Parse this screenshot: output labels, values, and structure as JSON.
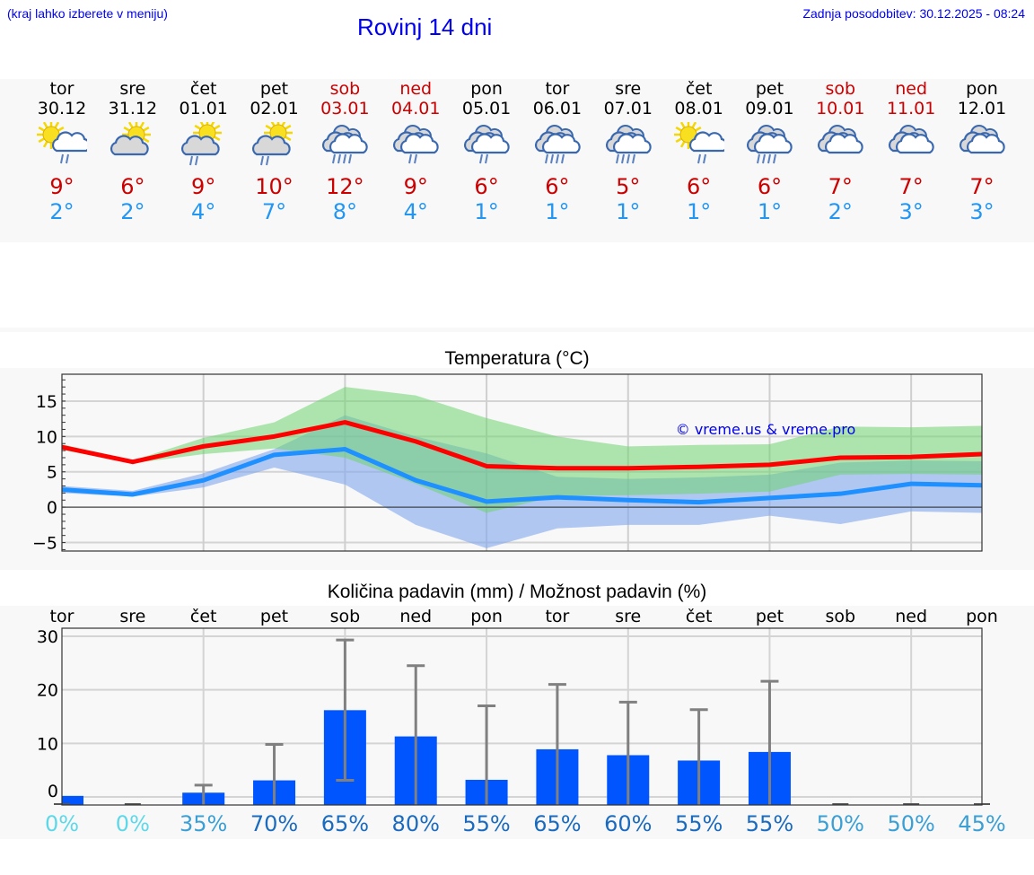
{
  "header": {
    "menu_hint": "(kraj lahko izberete v meniju)",
    "title": "Rovinj 14 dni",
    "last_update": "Zadnja posodobitev: 30.12.2025 - 08:24"
  },
  "colors": {
    "link_blue": "#0000ee",
    "weekend_red": "#cc0000",
    "max_temp": "#cc0000",
    "min_temp": "#2196f3",
    "max_line": "#ff0000",
    "min_line": "#1e90ff",
    "max_band": "#a8e6a8",
    "min_band": "#a9c4f0",
    "bar": "#0055ff",
    "error_bar": "#808080"
  },
  "days": [
    {
      "name": "tor",
      "date": "30.12",
      "weekend": false,
      "icon": "partly-sunny-light-rain-icon",
      "max": "9°",
      "min": "2°"
    },
    {
      "name": "sre",
      "date": "31.12",
      "weekend": false,
      "icon": "partly-cloudy-icon",
      "max": "6°",
      "min": "2°"
    },
    {
      "name": "čet",
      "date": "01.01",
      "weekend": false,
      "icon": "partly-cloudy-light-rain-icon",
      "max": "9°",
      "min": "4°"
    },
    {
      "name": "pet",
      "date": "02.01",
      "weekend": false,
      "icon": "partly-cloudy-light-rain-icon",
      "max": "10°",
      "min": "7°"
    },
    {
      "name": "sob",
      "date": "03.01",
      "weekend": true,
      "icon": "cloudy-heavy-rain-icon",
      "max": "12°",
      "min": "8°"
    },
    {
      "name": "ned",
      "date": "04.01",
      "weekend": true,
      "icon": "cloudy-light-rain-icon",
      "max": "9°",
      "min": "4°"
    },
    {
      "name": "pon",
      "date": "05.01",
      "weekend": false,
      "icon": "cloudy-light-rain-icon",
      "max": "6°",
      "min": "1°"
    },
    {
      "name": "tor",
      "date": "06.01",
      "weekend": false,
      "icon": "cloudy-heavy-rain-icon",
      "max": "6°",
      "min": "1°"
    },
    {
      "name": "sre",
      "date": "07.01",
      "weekend": false,
      "icon": "cloudy-heavy-rain-icon",
      "max": "5°",
      "min": "1°"
    },
    {
      "name": "čet",
      "date": "08.01",
      "weekend": false,
      "icon": "partly-sunny-light-rain-icon",
      "max": "6°",
      "min": "1°"
    },
    {
      "name": "pet",
      "date": "09.01",
      "weekend": false,
      "icon": "cloudy-heavy-rain-icon",
      "max": "6°",
      "min": "1°"
    },
    {
      "name": "sob",
      "date": "10.01",
      "weekend": true,
      "icon": "cloudy-icon",
      "max": "7°",
      "min": "2°"
    },
    {
      "name": "ned",
      "date": "11.01",
      "weekend": true,
      "icon": "cloudy-icon",
      "max": "7°",
      "min": "3°"
    },
    {
      "name": "pon",
      "date": "12.01",
      "weekend": false,
      "icon": "cloudy-icon",
      "max": "7°",
      "min": "3°"
    }
  ],
  "chart_data": [
    {
      "type": "line",
      "title": "Temperatura (°C)",
      "xlabel": "",
      "ylabel": "",
      "x": [
        "30.12",
        "31.12",
        "01.01",
        "02.01",
        "03.01",
        "04.01",
        "05.01",
        "06.01",
        "07.01",
        "08.01",
        "09.01",
        "10.01",
        "11.01",
        "12.01"
      ],
      "ylim": [
        -6.2,
        18.8
      ],
      "yticks": [
        -5,
        0,
        5,
        10,
        15
      ],
      "ytick_labels": [
        "−5",
        "0",
        "5",
        "10",
        "15"
      ],
      "grid": true,
      "watermark": "© vreme.us & vreme.pro",
      "series": [
        {
          "name": "max",
          "color": "#ff0000",
          "values": [
            8.5,
            6.4,
            8.6,
            10.0,
            12.0,
            9.3,
            5.8,
            5.5,
            5.5,
            5.7,
            6.0,
            7.0,
            7.1,
            7.5
          ]
        },
        {
          "name": "min",
          "color": "#1e90ff",
          "values": [
            2.5,
            1.8,
            3.8,
            7.4,
            8.2,
            3.8,
            0.8,
            1.4,
            1.0,
            0.7,
            1.3,
            1.9,
            3.3,
            3.1
          ]
        },
        {
          "name": "max_range_upper",
          "values": [
            8.9,
            6.6,
            9.8,
            12.0,
            17.0,
            15.8,
            12.6,
            10.0,
            8.6,
            8.8,
            8.9,
            11.4,
            11.3,
            11.5
          ]
        },
        {
          "name": "max_range_lower",
          "values": [
            8.1,
            6.2,
            7.5,
            8.3,
            7.0,
            3.3,
            -0.8,
            1.6,
            1.7,
            1.9,
            2.2,
            4.6,
            4.7,
            4.6
          ]
        },
        {
          "name": "min_range_upper",
          "values": [
            3.0,
            2.3,
            4.8,
            8.2,
            13.0,
            10.0,
            7.6,
            4.3,
            4.0,
            4.2,
            4.6,
            6.3,
            6.6,
            6.5
          ]
        },
        {
          "name": "min_range_lower",
          "values": [
            2.0,
            1.5,
            2.8,
            5.6,
            3.2,
            -2.5,
            -5.8,
            -3.0,
            -2.5,
            -2.5,
            -1.2,
            -2.4,
            -0.6,
            -0.8
          ]
        }
      ]
    },
    {
      "type": "bar",
      "title": "Količina padavin (mm) / Možnost padavin (%)",
      "categories": [
        "tor",
        "sre",
        "čet",
        "pet",
        "sob",
        "ned",
        "pon",
        "tor",
        "sre",
        "čet",
        "pet",
        "sob",
        "ned",
        "pon"
      ],
      "ylim": [
        -1.5,
        31.5
      ],
      "yticks": [
        0,
        10,
        20,
        30
      ],
      "grid": true,
      "series": [
        {
          "name": "precipitation_mm",
          "color": "#0055ff",
          "values": [
            0.2,
            0,
            0.8,
            3.1,
            16.2,
            11.3,
            3.2,
            8.9,
            7.8,
            6.8,
            8.4,
            0,
            0,
            0
          ]
        },
        {
          "name": "error_low",
          "values": [
            0,
            0,
            0,
            0,
            3.1,
            0,
            0,
            0,
            0,
            0,
            0,
            0,
            0,
            0
          ]
        },
        {
          "name": "error_high",
          "values": [
            0.3,
            0.1,
            2.2,
            9.8,
            29.3,
            24.5,
            17.0,
            21.0,
            17.7,
            16.3,
            21.6,
            0.1,
            0.1,
            0.1
          ]
        }
      ],
      "probability": [
        "0%",
        "0%",
        "35%",
        "70%",
        "65%",
        "80%",
        "55%",
        "65%",
        "60%",
        "55%",
        "55%",
        "50%",
        "50%",
        "45%"
      ],
      "probability_colors": [
        "#5dd8e8",
        "#5dd8e8",
        "#3a9fd4",
        "#1a6bbf",
        "#1a6bbf",
        "#1a6bbf",
        "#1a6bbf",
        "#1a6bbf",
        "#1a6bbf",
        "#1a6bbf",
        "#1a6bbf",
        "#3a9fd4",
        "#3a9fd4",
        "#3a9fd4"
      ]
    }
  ]
}
